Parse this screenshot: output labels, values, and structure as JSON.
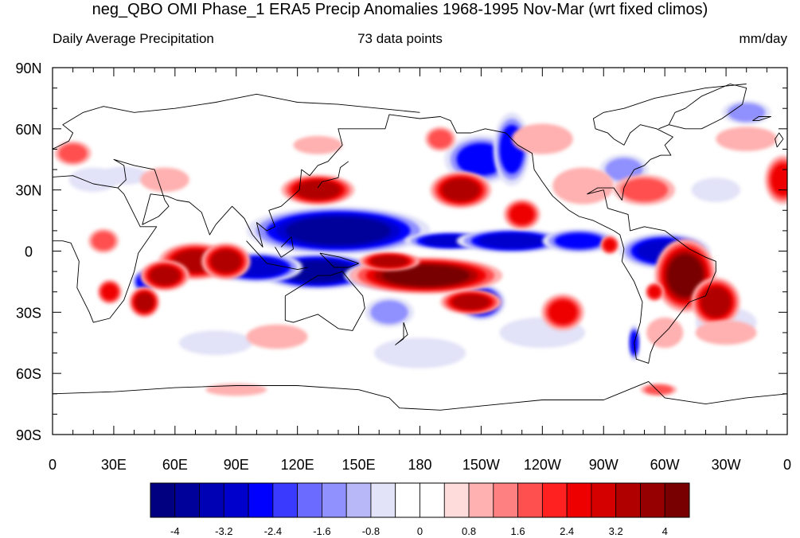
{
  "title": "neg_QBO OMI Phase_1 ERA5 Precip Anomalies 1968-1995 Nov-Mar (wrt fixed climos)",
  "subtitle_left": "Daily Average Precipitation",
  "subtitle_center": "73 data points",
  "subtitle_right": "mm/day",
  "lat_labels": [
    "90N",
    "60N",
    "30N",
    "0",
    "30S",
    "60S",
    "90S"
  ],
  "lon_labels": [
    "0",
    "30E",
    "60E",
    "90E",
    "120E",
    "150E",
    "180",
    "150W",
    "120W",
    "90W",
    "60W",
    "30W",
    "0"
  ],
  "colorbar": {
    "labels": [
      "-4",
      "-3.2",
      "-2.4",
      "-1.6",
      "-0.8",
      "0",
      "0.8",
      "1.6",
      "2.4",
      "3.2",
      "4"
    ],
    "colors": [
      "#000080",
      "#00009a",
      "#0000b4",
      "#0000cd",
      "#0000ff",
      "#3a3aff",
      "#6b6bff",
      "#9090ff",
      "#b8b8f8",
      "#e2e2f8",
      "#ffffff",
      "#ffffff",
      "#ffdcdc",
      "#ffb0b0",
      "#ff8080",
      "#ff5050",
      "#ff2020",
      "#ee0000",
      "#d40000",
      "#b00000",
      "#960000",
      "#780000"
    ]
  },
  "anomalies": [
    {
      "lon": 140,
      "lat": 10,
      "rx": 30,
      "ry": 8,
      "level": -4
    },
    {
      "lon": 130,
      "lat": -10,
      "rx": 20,
      "ry": 6,
      "level": -4
    },
    {
      "lon": 170,
      "lat": -12,
      "rx": 18,
      "ry": 5,
      "level": -3.5
    },
    {
      "lon": 100,
      "lat": -8,
      "rx": 15,
      "ry": 5,
      "level": -3
    },
    {
      "lon": 195,
      "lat": 5,
      "rx": 15,
      "ry": 3,
      "level": -3
    },
    {
      "lon": 225,
      "lat": 5,
      "rx": 18,
      "ry": 4,
      "level": -3
    },
    {
      "lon": 258,
      "lat": 5,
      "rx": 12,
      "ry": 4,
      "level": -2.5
    },
    {
      "lon": 300,
      "lat": 0,
      "rx": 15,
      "ry": 6,
      "level": -3
    },
    {
      "lon": 210,
      "lat": -25,
      "rx": 8,
      "ry": 6,
      "level": -3
    },
    {
      "lon": 210,
      "lat": 45,
      "rx": 12,
      "ry": 8,
      "level": -2.5
    },
    {
      "lon": 225,
      "lat": 50,
      "rx": 6,
      "ry": 12,
      "level": -2
    },
    {
      "lon": 45,
      "lat": -15,
      "rx": 4,
      "ry": 4,
      "level": -2.5
    },
    {
      "lon": 285,
      "lat": -45,
      "rx": 2,
      "ry": 6,
      "level": -2
    },
    {
      "lon": 280,
      "lat": 40,
      "rx": 8,
      "ry": 5,
      "level": -1.5
    },
    {
      "lon": 340,
      "lat": 68,
      "rx": 8,
      "ry": 4,
      "level": -1.5
    },
    {
      "lon": 325,
      "lat": 30,
      "rx": 8,
      "ry": 4,
      "level": -1
    },
    {
      "lon": 165,
      "lat": -30,
      "rx": 8,
      "ry": 5,
      "level": -1.5
    },
    {
      "lon": 35,
      "lat": 37,
      "rx": 8,
      "ry": 3,
      "level": -1.2
    },
    {
      "lon": 20,
      "lat": 35,
      "rx": 8,
      "ry": 4,
      "level": -1
    },
    {
      "lon": 180,
      "lat": -50,
      "rx": 15,
      "ry": 5,
      "level": -0.8
    },
    {
      "lon": 240,
      "lat": -40,
      "rx": 14,
      "ry": 5,
      "level": -0.8
    },
    {
      "lon": 330,
      "lat": -35,
      "rx": 10,
      "ry": 5,
      "level": -0.8
    },
    {
      "lon": 80,
      "lat": -45,
      "rx": 12,
      "ry": 4,
      "level": -0.8
    },
    {
      "lon": 183,
      "lat": -12,
      "rx": 25,
      "ry": 6,
      "level": 4
    },
    {
      "lon": 165,
      "lat": -5,
      "rx": 10,
      "ry": 3,
      "level": 3
    },
    {
      "lon": 205,
      "lat": -25,
      "rx": 10,
      "ry": 4,
      "level": 3
    },
    {
      "lon": 310,
      "lat": -12,
      "rx": 10,
      "ry": 12,
      "level": 4
    },
    {
      "lon": 325,
      "lat": -25,
      "rx": 8,
      "ry": 8,
      "level": 3
    },
    {
      "lon": 70,
      "lat": -5,
      "rx": 12,
      "ry": 6,
      "level": 3.5
    },
    {
      "lon": 85,
      "lat": -5,
      "rx": 8,
      "ry": 6,
      "level": 3
    },
    {
      "lon": 55,
      "lat": -12,
      "rx": 8,
      "ry": 5,
      "level": 3
    },
    {
      "lon": 45,
      "lat": -25,
      "rx": 5,
      "ry": 5,
      "level": 3
    },
    {
      "lon": 130,
      "lat": 30,
      "rx": 12,
      "ry": 5,
      "level": 3
    },
    {
      "lon": 200,
      "lat": 30,
      "rx": 10,
      "ry": 6,
      "level": 3
    },
    {
      "lon": 230,
      "lat": 18,
      "rx": 6,
      "ry": 5,
      "level": 2.5
    },
    {
      "lon": 250,
      "lat": -30,
      "rx": 7,
      "ry": 6,
      "level": 2.5
    },
    {
      "lon": 28,
      "lat": -20,
      "rx": 4,
      "ry": 4,
      "level": 2
    },
    {
      "lon": 25,
      "lat": 5,
      "rx": 5,
      "ry": 4,
      "level": 1.6
    },
    {
      "lon": 273,
      "lat": 3,
      "rx": 3,
      "ry": 3,
      "level": 2.5
    },
    {
      "lon": 295,
      "lat": -20,
      "rx": 3,
      "ry": 3,
      "level": 2
    },
    {
      "lon": 190,
      "lat": 55,
      "rx": 5,
      "ry": 4,
      "level": 1.6
    },
    {
      "lon": 290,
      "lat": 30,
      "rx": 10,
      "ry": 5,
      "level": 1.6
    },
    {
      "lon": 358,
      "lat": 35,
      "rx": 6,
      "ry": 8,
      "level": 2
    },
    {
      "lon": 260,
      "lat": 32,
      "rx": 10,
      "ry": 6,
      "level": 1.2
    },
    {
      "lon": 10,
      "lat": 48,
      "rx": 6,
      "ry": 4,
      "level": 1.6
    },
    {
      "lon": 55,
      "lat": 35,
      "rx": 8,
      "ry": 4,
      "level": 1.2
    },
    {
      "lon": 110,
      "lat": -42,
      "rx": 10,
      "ry": 4,
      "level": 1.2
    },
    {
      "lon": 330,
      "lat": -40,
      "rx": 10,
      "ry": 4,
      "level": 1.2
    },
    {
      "lon": 300,
      "lat": -40,
      "rx": 6,
      "ry": 5,
      "level": 1.2
    },
    {
      "lon": 90,
      "lat": -68,
      "rx": 10,
      "ry": 2,
      "level": 1
    },
    {
      "lon": 297,
      "lat": -68,
      "rx": 6,
      "ry": 2,
      "level": 1.6
    },
    {
      "lon": 340,
      "lat": 55,
      "rx": 10,
      "ry": 4,
      "level": 1
    },
    {
      "lon": 130,
      "lat": 52,
      "rx": 8,
      "ry": 3,
      "level": 1
    },
    {
      "lon": 240,
      "lat": 55,
      "rx": 10,
      "ry": 5,
      "level": 0.8
    }
  ]
}
